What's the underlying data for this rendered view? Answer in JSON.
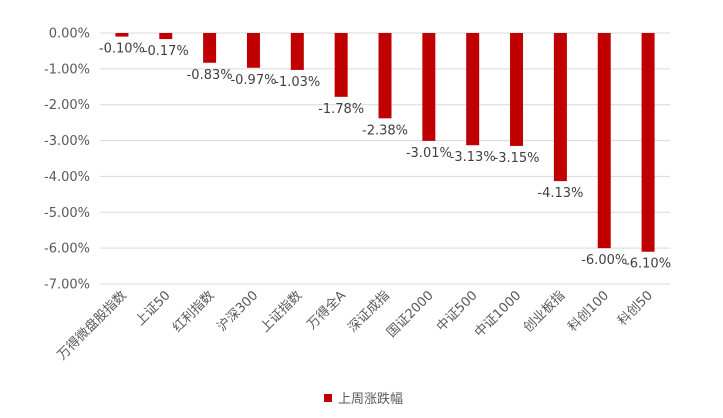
{
  "chart_data": {
    "type": "bar",
    "categories": [
      "万得微盘股指数",
      "上证50",
      "红利指数",
      "沪深300",
      "上证指数",
      "万得全A",
      "深证成指",
      "国证2000",
      "中证500",
      "中证1000",
      "创业板指",
      "科创100",
      "科创50"
    ],
    "values": [
      -0.1,
      -0.17,
      -0.83,
      -0.97,
      -1.03,
      -1.78,
      -2.38,
      -3.01,
      -3.13,
      -3.15,
      -4.13,
      -6.0,
      -6.1
    ],
    "data_labels": [
      "-0.10%",
      "-0.17%",
      "-0.83%",
      "-0.97%",
      "-1.03%",
      "-1.78%",
      "-2.38%",
      "-3.01%",
      "-3.13%",
      "-3.15%",
      "-4.13%",
      "-6.00%",
      "-6.10%"
    ],
    "ylim": [
      -7.0,
      0.0
    ],
    "y_ticks": [
      "0.00%",
      "-1.00%",
      "-2.00%",
      "-3.00%",
      "-4.00%",
      "-5.00%",
      "-6.00%",
      "-7.00%"
    ],
    "grid": true,
    "series": [
      {
        "name": "上周涨跌幅",
        "color": "#C00000"
      }
    ],
    "legend_position": "bottom-center"
  }
}
